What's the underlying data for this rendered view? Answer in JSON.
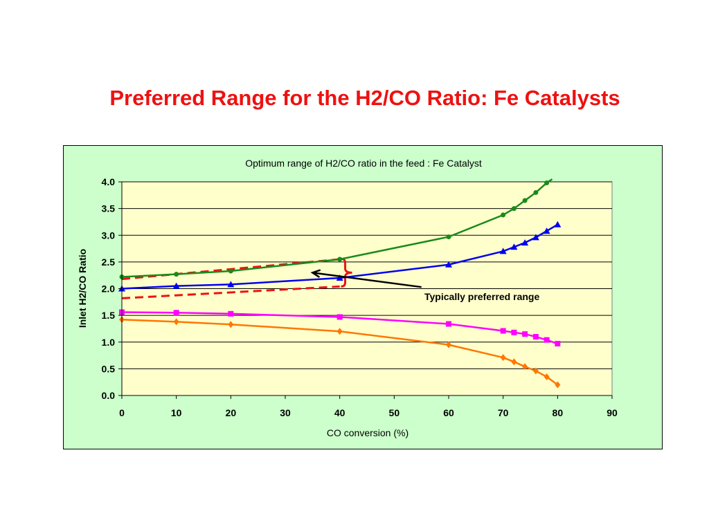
{
  "slide": {
    "title": "Preferred Range for the H2/CO Ratio: Fe Catalysts"
  },
  "chart_data": {
    "type": "line",
    "title": "Optimum range of H2/CO ratio in the feed : Fe Catalyst",
    "xlabel": "CO conversion (%)",
    "ylabel": "Inlet H2/CO Ratio",
    "xlim": [
      0,
      90
    ],
    "ylim": [
      0,
      4
    ],
    "xticks": [
      "0",
      "10",
      "20",
      "30",
      "40",
      "50",
      "60",
      "70",
      "80",
      "90"
    ],
    "yticks": [
      "0.0",
      "0.5",
      "1.0",
      "1.5",
      "2.0",
      "2.5",
      "3.0",
      "3.5",
      "4.0"
    ],
    "grid": "horizontal",
    "legend": "none",
    "plot_background": "#ffffcc",
    "figure_background": "#ccffcc",
    "series": [
      {
        "color": "#1a8a1a",
        "marker": "circle",
        "x": [
          0,
          10,
          20,
          40,
          60,
          70,
          72,
          74,
          76,
          78,
          79
        ],
        "y": [
          2.22,
          2.27,
          2.33,
          2.55,
          2.97,
          3.38,
          3.5,
          3.65,
          3.8,
          3.98,
          4.05
        ]
      },
      {
        "color": "#0000ee",
        "marker": "triangle",
        "x": [
          0,
          10,
          20,
          40,
          60,
          70,
          72,
          74,
          76,
          78,
          80
        ],
        "y": [
          2.0,
          2.05,
          2.08,
          2.2,
          2.45,
          2.7,
          2.78,
          2.86,
          2.96,
          3.08,
          3.2
        ]
      },
      {
        "color": "#ff00ff",
        "marker": "square",
        "x": [
          0,
          10,
          20,
          40,
          60,
          70,
          72,
          74,
          76,
          78,
          80
        ],
        "y": [
          1.56,
          1.55,
          1.53,
          1.47,
          1.34,
          1.21,
          1.18,
          1.15,
          1.1,
          1.04,
          0.97
        ]
      },
      {
        "color": "#ff7700",
        "marker": "diamond",
        "x": [
          0,
          10,
          20,
          40,
          60,
          70,
          72,
          74,
          76,
          78,
          80
        ],
        "y": [
          1.42,
          1.38,
          1.33,
          1.2,
          0.95,
          0.71,
          0.63,
          0.54,
          0.46,
          0.35,
          0.2
        ]
      }
    ],
    "preferred_range": {
      "color": "#ee1111",
      "upper": {
        "x": [
          0,
          40
        ],
        "y": [
          2.18,
          2.55
        ]
      },
      "lower": {
        "x": [
          0,
          40
        ],
        "y": [
          1.82,
          2.04
        ]
      },
      "brace_x": 41,
      "brace_y": [
        2.04,
        2.56
      ]
    },
    "annotation": {
      "text": "Typically preferred range",
      "arrow_tail": [
        55,
        2.03
      ],
      "arrow_head": [
        35,
        2.3
      ]
    }
  }
}
